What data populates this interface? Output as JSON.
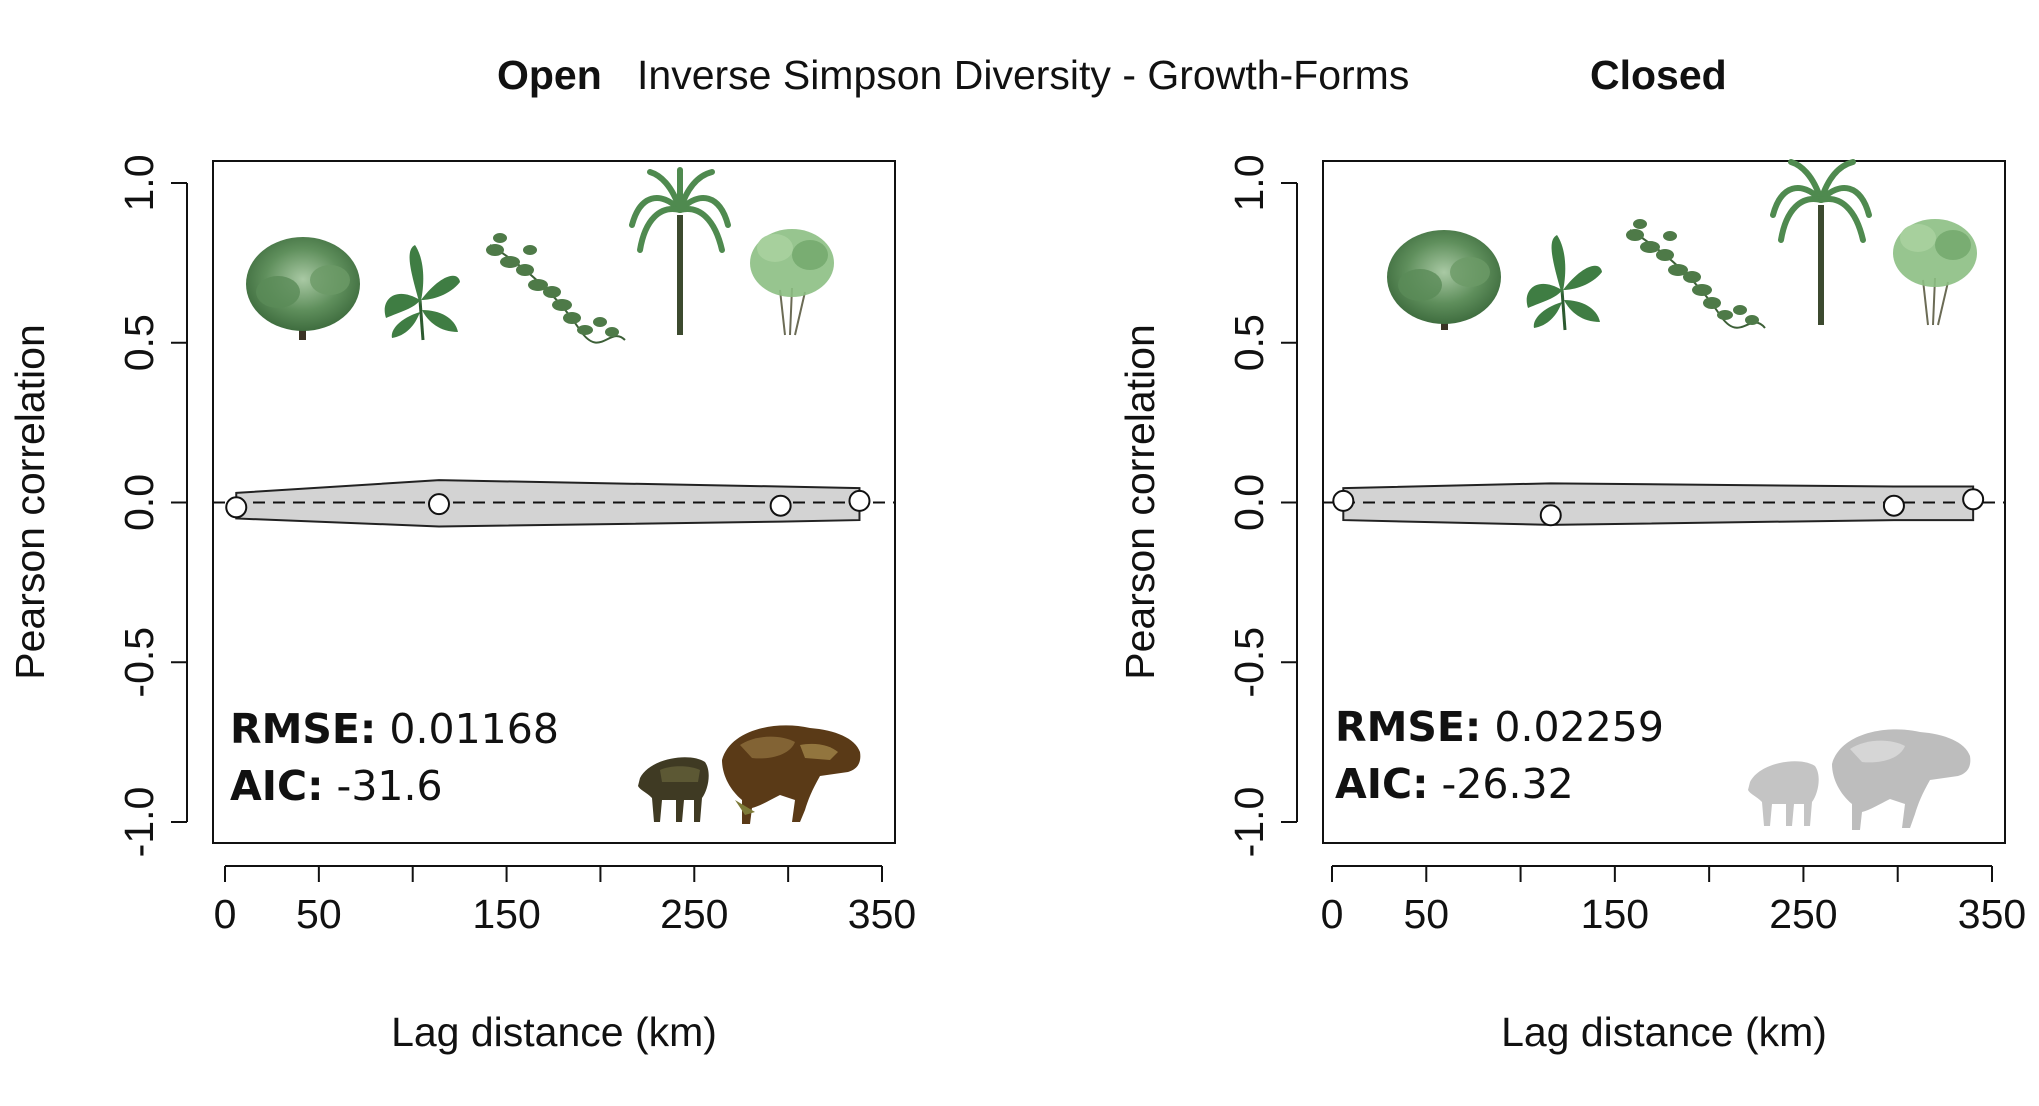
{
  "figure": {
    "title_left": "Open",
    "title_center": "Inverse Simpson Diversity - Growth-Forms",
    "title_right": "Closed"
  },
  "chart_data": [
    {
      "type": "line",
      "panel": "Open",
      "xlabel": "Lag distance (km)",
      "ylabel": "Pearson correlation",
      "xlim": [
        0,
        350
      ],
      "ylim": [
        -1.0,
        1.0
      ],
      "x_tick_values": [
        0,
        50,
        100,
        150,
        200,
        250,
        300,
        350
      ],
      "x_tick_labels": [
        "0",
        "50",
        "",
        "150",
        "",
        "250",
        "",
        "350"
      ],
      "y_tick_values": [
        -1.0,
        -0.5,
        0.0,
        0.5,
        1.0
      ],
      "y_tick_labels": [
        "-1.0",
        "-0.5",
        "0.0",
        "0.5",
        "1.0"
      ],
      "reference_line_y": 0,
      "series": [
        {
          "x": [
            6,
            114,
            296,
            338
          ],
          "y": [
            -0.015,
            -0.005,
            -0.01,
            0.005
          ]
        }
      ],
      "band": {
        "x": [
          6,
          114,
          296,
          338
        ],
        "upper": [
          0.03,
          0.07,
          0.05,
          0.045
        ],
        "lower": [
          -0.05,
          -0.075,
          -0.06,
          -0.055
        ]
      },
      "stats": {
        "rmse_label": "RMSE:",
        "rmse_value": "0.01168",
        "aic_label": "AIC:",
        "aic_value": "-31.6"
      },
      "icons": [
        "tree-icon",
        "herb-icon",
        "liana-icon",
        "palm-icon",
        "shrub-icon",
        "peccary-icon",
        "tapir-icon"
      ],
      "colors": {
        "band": "#d3d3d3",
        "mammals": "#6b4a1f",
        "mammal_highlight": "#8a8a3a",
        "plants": "#4f8a4f"
      }
    },
    {
      "type": "line",
      "panel": "Closed",
      "xlabel": "Lag distance (km)",
      "ylabel": "Pearson correlation",
      "xlim": [
        0,
        350
      ],
      "ylim": [
        -1.0,
        1.0
      ],
      "x_tick_values": [
        0,
        50,
        100,
        150,
        200,
        250,
        300,
        350
      ],
      "x_tick_labels": [
        "0",
        "50",
        "",
        "150",
        "",
        "250",
        "",
        "350"
      ],
      "y_tick_values": [
        -1.0,
        -0.5,
        0.0,
        0.5,
        1.0
      ],
      "y_tick_labels": [
        "-1.0",
        "-0.5",
        "0.0",
        "0.5",
        "1.0"
      ],
      "reference_line_y": 0,
      "series": [
        {
          "x": [
            6,
            116,
            298,
            340
          ],
          "y": [
            0.005,
            -0.04,
            -0.01,
            0.01
          ]
        }
      ],
      "band": {
        "x": [
          6,
          116,
          298,
          340
        ],
        "upper": [
          0.045,
          0.06,
          0.05,
          0.05
        ],
        "lower": [
          -0.055,
          -0.07,
          -0.055,
          -0.055
        ]
      },
      "stats": {
        "rmse_label": "RMSE:",
        "rmse_value": "0.02259",
        "aic_label": "AIC:",
        "aic_value": "-26.32"
      },
      "icons": [
        "tree-icon",
        "herb-icon",
        "liana-icon",
        "palm-icon",
        "shrub-icon",
        "peccary-icon",
        "tapir-icon"
      ],
      "colors": {
        "band": "#d3d3d3",
        "mammals": "#c2c2c2",
        "mammal_highlight": "#d8d8d8",
        "plants": "#4f8a4f"
      }
    }
  ]
}
